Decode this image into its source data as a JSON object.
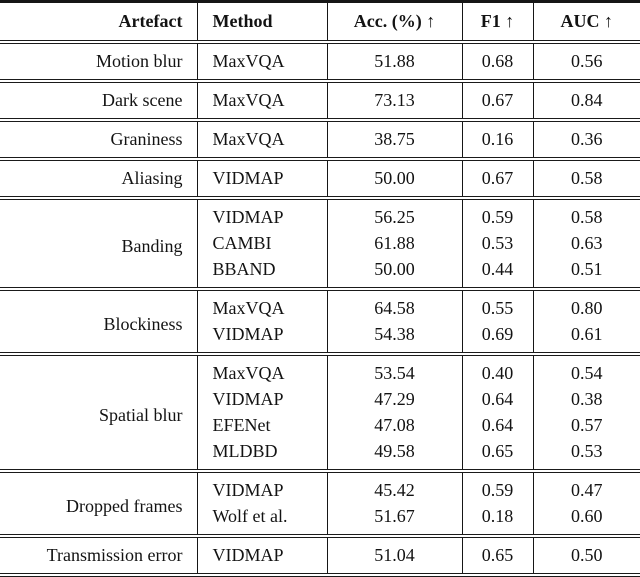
{
  "table": {
    "columns": [
      {
        "key": "artefact",
        "label": "Artefact"
      },
      {
        "key": "method",
        "label": "Method"
      },
      {
        "key": "acc",
        "label": "Acc. (%) ↑"
      },
      {
        "key": "f1",
        "label": "F1 ↑"
      },
      {
        "key": "auc",
        "label": "AUC ↑"
      }
    ],
    "sections": [
      {
        "artefact": "Motion blur",
        "rows": [
          {
            "method": "MaxVQA",
            "acc": "51.88",
            "f1": "0.68",
            "auc": "0.56"
          }
        ]
      },
      {
        "artefact": "Dark scene",
        "rows": [
          {
            "method": "MaxVQA",
            "acc": "73.13",
            "f1": "0.67",
            "auc": "0.84"
          }
        ]
      },
      {
        "artefact": "Graniness",
        "rows": [
          {
            "method": "MaxVQA",
            "acc": "38.75",
            "f1": "0.16",
            "auc": "0.36"
          }
        ]
      },
      {
        "artefact": "Aliasing",
        "rows": [
          {
            "method": "VIDMAP",
            "acc": "50.00",
            "f1": "0.67",
            "auc": "0.58"
          }
        ]
      },
      {
        "artefact": "Banding",
        "rows": [
          {
            "method": "VIDMAP",
            "acc": "56.25",
            "f1": "0.59",
            "auc": "0.58"
          },
          {
            "method": "CAMBI",
            "acc": "61.88",
            "f1": "0.53",
            "auc": "0.63"
          },
          {
            "method": "BBAND",
            "acc": "50.00",
            "f1": "0.44",
            "auc": "0.51"
          }
        ]
      },
      {
        "artefact": "Blockiness",
        "rows": [
          {
            "method": "MaxVQA",
            "acc": "64.58",
            "f1": "0.55",
            "auc": "0.80"
          },
          {
            "method": "VIDMAP",
            "acc": "54.38",
            "f1": "0.69",
            "auc": "0.61"
          }
        ]
      },
      {
        "artefact": "Spatial blur",
        "rows": [
          {
            "method": "MaxVQA",
            "acc": "53.54",
            "f1": "0.40",
            "auc": "0.54"
          },
          {
            "method": "VIDMAP",
            "acc": "47.29",
            "f1": "0.64",
            "auc": "0.38"
          },
          {
            "method": "EFENet",
            "acc": "47.08",
            "f1": "0.64",
            "auc": "0.57"
          },
          {
            "method": "MLDBD",
            "acc": "49.58",
            "f1": "0.65",
            "auc": "0.53"
          }
        ]
      },
      {
        "artefact": "Dropped frames",
        "rows": [
          {
            "method": "VIDMAP",
            "acc": "45.42",
            "f1": "0.59",
            "auc": "0.47"
          },
          {
            "method": "Wolf et al.",
            "acc": "51.67",
            "f1": "0.18",
            "auc": "0.60"
          }
        ]
      },
      {
        "artefact": "Transmission error",
        "rows": [
          {
            "method": "VIDMAP",
            "acc": "51.04",
            "f1": "0.65",
            "auc": "0.50"
          }
        ]
      }
    ]
  }
}
